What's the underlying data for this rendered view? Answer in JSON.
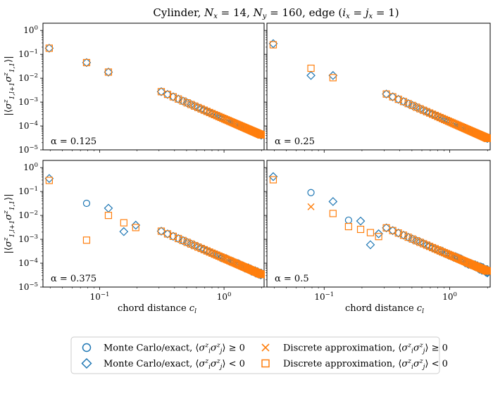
{
  "figure": {
    "title": "Cylinder, N_x = 14, N_y = 160, edge (i_x = j_x = 1)",
    "ylabel": "|⟨σ^z_{1,l+1} σ^z_{1,1}⟩|",
    "xlabel": "chord distance c_l"
  },
  "colors": {
    "blue": "#1f77b4",
    "orange": "#ff7f0e"
  },
  "legend": {
    "placement": "bottom-center",
    "entries": [
      {
        "key": "mc_pos",
        "label": "Monte Carlo/exact, ⟨σ^z_i σ^z_j⟩ ≥ 0",
        "marker": "circle",
        "color": "#1f77b4"
      },
      {
        "key": "mc_neg",
        "label": "Monte Carlo/exact, ⟨σ^z_i σ^z_j⟩ < 0",
        "marker": "diamond",
        "color": "#1f77b4"
      },
      {
        "key": "da_pos",
        "label": "Discrete approximation, ⟨σ^z_i σ^z_j⟩ ≥ 0",
        "marker": "x",
        "color": "#ff7f0e"
      },
      {
        "key": "da_neg",
        "label": "Discrete approximation, ⟨σ^z_i σ^z_j⟩ < 0",
        "marker": "square",
        "color": "#ff7f0e"
      }
    ]
  },
  "chart_data": {
    "type": "scatter",
    "xscale": "log",
    "yscale": "log",
    "xlim": [
      0.035,
      2.1
    ],
    "ylim": [
      1e-05,
      2.0
    ],
    "x_ticks": [
      {
        "value": 0.1,
        "label": "10^-1"
      },
      {
        "value": 1,
        "label": "10^0"
      }
    ],
    "y_ticks": [
      {
        "value": 1,
        "label": "10^0"
      },
      {
        "value": 0.1,
        "label": "10^-1"
      },
      {
        "value": 0.01,
        "label": "10^-2"
      },
      {
        "value": 0.001,
        "label": "10^-3"
      },
      {
        "value": 0.0001,
        "label": "10^-4"
      },
      {
        "value": 1e-05,
        "label": "10^-5"
      }
    ],
    "ring_lengths": [
      14,
      160
    ],
    "chord_diameter": 2,
    "panels": [
      {
        "alpha_label": "α = 0.125",
        "amplitude": 0.0002,
        "exponent": 2.25,
        "mc_near": [
          {
            "x": 0.0393,
            "y": 0.18,
            "s": "neg"
          },
          {
            "x": 0.0785,
            "y": 0.045,
            "s": "neg"
          },
          {
            "x": 0.1176,
            "y": 0.018,
            "s": "neg"
          }
        ],
        "da_near": [
          {
            "x": 0.0393,
            "y": 0.18,
            "s": "neg"
          },
          {
            "x": 0.0785,
            "y": 0.045,
            "s": "neg"
          },
          {
            "x": 0.1176,
            "y": 0.018,
            "s": "neg"
          }
        ],
        "tail": {
          "mc": "neg",
          "da": "neg",
          "noise": 0
        }
      },
      {
        "alpha_label": "α = 0.25",
        "amplitude": 0.00015,
        "exponent": 2.3,
        "mc_near": [
          {
            "x": 0.0393,
            "y": 0.28,
            "s": "neg"
          },
          {
            "x": 0.0785,
            "y": 0.013,
            "s": "neg"
          },
          {
            "x": 0.1176,
            "y": 0.013,
            "s": "neg"
          }
        ],
        "da_near": [
          {
            "x": 0.0393,
            "y": 0.25,
            "s": "neg"
          },
          {
            "x": 0.0785,
            "y": 0.026,
            "s": "neg"
          },
          {
            "x": 0.1176,
            "y": 0.0105,
            "s": "neg"
          }
        ],
        "tail": {
          "mc": "neg",
          "da": "neg",
          "noise": 0
        }
      },
      {
        "alpha_label": "α = 0.375",
        "amplitude": 0.00016,
        "exponent": 2.25,
        "mc_near": [
          {
            "x": 0.0393,
            "y": 0.35,
            "s": "neg"
          },
          {
            "x": 0.0785,
            "y": 0.032,
            "s": "pos"
          },
          {
            "x": 0.1176,
            "y": 0.02,
            "s": "neg"
          },
          {
            "x": 0.1564,
            "y": 0.0021,
            "s": "neg"
          },
          {
            "x": 0.1951,
            "y": 0.0039,
            "s": "neg"
          }
        ],
        "da_near": [
          {
            "x": 0.0393,
            "y": 0.29,
            "s": "neg"
          },
          {
            "x": 0.0785,
            "y": 0.00092,
            "s": "neg"
          },
          {
            "x": 0.1176,
            "y": 0.01,
            "s": "neg"
          },
          {
            "x": 0.1564,
            "y": 0.0049,
            "s": "neg"
          },
          {
            "x": 0.1951,
            "y": 0.0031,
            "s": "neg"
          }
        ],
        "tail": {
          "mc": "neg",
          "da": "neg",
          "noise": 0.2
        }
      },
      {
        "alpha_label": "α = 0.5",
        "amplitude": 0.00022,
        "exponent": 2.25,
        "mc_near": [
          {
            "x": 0.0393,
            "y": 0.42,
            "s": "neg"
          },
          {
            "x": 0.0785,
            "y": 0.09,
            "s": "pos"
          },
          {
            "x": 0.1176,
            "y": 0.038,
            "s": "neg"
          },
          {
            "x": 0.1564,
            "y": 0.0063,
            "s": "pos"
          },
          {
            "x": 0.1951,
            "y": 0.0058,
            "s": "neg"
          },
          {
            "x": 0.2335,
            "y": 0.00059,
            "s": "neg"
          },
          {
            "x": 0.2715,
            "y": 0.0017,
            "s": "neg"
          }
        ],
        "da_near": [
          {
            "x": 0.0393,
            "y": 0.31,
            "s": "neg"
          },
          {
            "x": 0.0785,
            "y": 0.023,
            "s": "pos"
          },
          {
            "x": 0.1176,
            "y": 0.012,
            "s": "neg"
          },
          {
            "x": 0.1564,
            "y": 0.0034,
            "s": "neg"
          },
          {
            "x": 0.1951,
            "y": 0.0026,
            "s": "neg"
          },
          {
            "x": 0.2335,
            "y": 0.0019,
            "s": "neg"
          },
          {
            "x": 0.2715,
            "y": 0.0013,
            "s": "neg"
          }
        ],
        "tail": {
          "mc": "neg",
          "da": "neg",
          "noise": 0.25
        }
      }
    ]
  }
}
